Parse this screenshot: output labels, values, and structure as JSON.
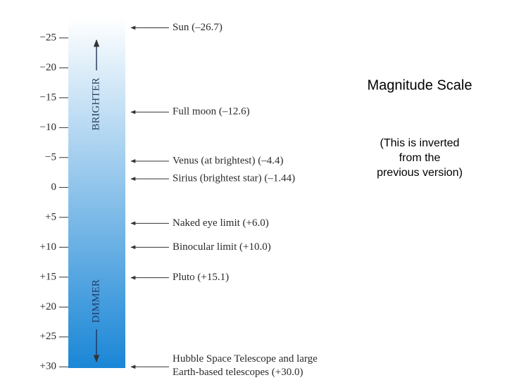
{
  "chart_data": {
    "type": "scale",
    "title": "Magnitude Scale",
    "note": [
      "(This is inverted",
      "from the",
      "previous version)"
    ],
    "brighter_label": "BRIGHTER",
    "dimmer_label": "DIMMER",
    "ylim": [
      -28.4,
      30.2
    ],
    "yticks": [
      {
        "value": -25,
        "label": "−25"
      },
      {
        "value": -20,
        "label": "−20"
      },
      {
        "value": -15,
        "label": "−15"
      },
      {
        "value": -10,
        "label": "−10"
      },
      {
        "value": -5,
        "label": "−5"
      },
      0,
      {
        "value": 5,
        "label": "+5"
      },
      {
        "value": 10,
        "label": "+10"
      },
      {
        "value": 15,
        "label": "+15"
      },
      {
        "value": 20,
        "label": "+20"
      },
      {
        "value": 25,
        "label": "+25"
      },
      {
        "value": 30,
        "label": "+30"
      }
    ],
    "annotations": [
      {
        "value": -26.7,
        "label": "Sun (–26.7)"
      },
      {
        "value": -12.6,
        "label": "Full moon (–12.6)"
      },
      {
        "value": -4.4,
        "label": "Venus (at brightest) (–4.4)"
      },
      {
        "value": -1.44,
        "label": "Sirius (brightest star) (–1.44)"
      },
      {
        "value": 6.0,
        "label": "Naked eye limit (+6.0)"
      },
      {
        "value": 10.0,
        "label": "Binocular limit (+10.0)"
      },
      {
        "value": 15.1,
        "label": "Pluto (+15.1)"
      },
      {
        "value": 30.0,
        "label": [
          "Hubble Space Telescope and large",
          "Earth-based telescopes (+30.0)"
        ]
      }
    ],
    "bar_colors": [
      "#ffffff",
      "#1a86d6"
    ]
  }
}
